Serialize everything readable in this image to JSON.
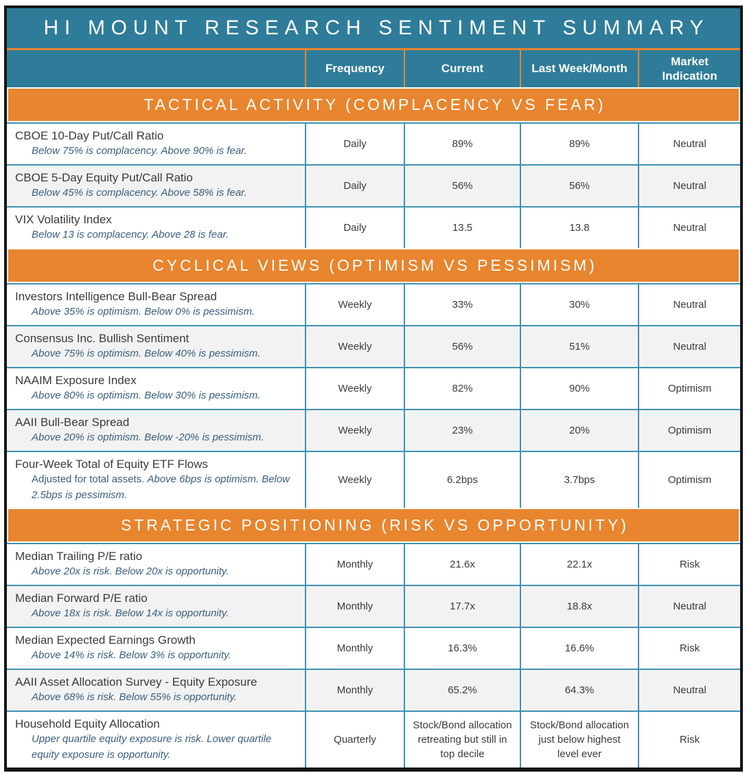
{
  "title": "HI MOUNT RESEARCH SENTIMENT SUMMARY",
  "columns": [
    "Frequency",
    "Current",
    "Last Week/Month",
    "Market Indication"
  ],
  "colors": {
    "teal_header": "#2E7C99",
    "orange_band": "#E8852E",
    "row_border_teal": "#3E92B0",
    "row_alt_gray": "#F2F2F2",
    "note_blue": "#3A6080",
    "text_dark": "#3B3B3B",
    "frame_black": "#151515",
    "title_text": "#FFFFFF"
  },
  "sections": [
    {
      "heading": "TACTICAL ACTIVITY (COMPLACENCY VS FEAR)",
      "rows": [
        {
          "title": "CBOE 10-Day Put/Call Ratio",
          "note_plain": "",
          "note_italic": "Below 75% is complacency. Above 90% is fear.",
          "frequency": "Daily",
          "current": "89%",
          "last": "89%",
          "indication": "Neutral"
        },
        {
          "title": "CBOE 5-Day Equity Put/Call Ratio",
          "note_plain": "",
          "note_italic": "Below 45% is complacency. Above 58% is fear.",
          "frequency": "Daily",
          "current": "56%",
          "last": "56%",
          "indication": "Neutral"
        },
        {
          "title": "VIX Volatility Index",
          "note_plain": "",
          "note_italic": "Below 13 is complacency. Above 28 is fear.",
          "frequency": "Daily",
          "current": "13.5",
          "last": "13.8",
          "indication": "Neutral"
        }
      ]
    },
    {
      "heading": "CYCLICAL VIEWS (OPTIMISM VS PESSIMISM)",
      "rows": [
        {
          "title": "Investors Intelligence Bull-Bear Spread",
          "note_plain": "",
          "note_italic": "Above 35% is optimism. Below 0% is pessimism.",
          "frequency": "Weekly",
          "current": "33%",
          "last": "30%",
          "indication": "Neutral"
        },
        {
          "title": "Consensus Inc. Bullish Sentiment",
          "note_plain": "",
          "note_italic": "Above 75% is optimism. Below 40% is pessimism.",
          "frequency": "Weekly",
          "current": "56%",
          "last": "51%",
          "indication": "Neutral"
        },
        {
          "title": "NAAIM Exposure Index",
          "note_plain": "",
          "note_italic": "Above 80% is optimism. Below 30% is pessimism.",
          "frequency": "Weekly",
          "current": "82%",
          "last": "90%",
          "indication": "Optimism"
        },
        {
          "title": "AAII Bull-Bear Spread",
          "note_plain": "",
          "note_italic": "Above 20% is optimism. Below -20% is pessimism.",
          "frequency": "Weekly",
          "current": "23%",
          "last": "20%",
          "indication": "Optimism"
        },
        {
          "title": "Four-Week Total of Equity ETF Flows",
          "note_plain": "Adjusted for total assets. ",
          "note_italic": "Above 6bps is optimism. Below 2.5bps is pessimism.",
          "frequency": "Weekly",
          "current": "6.2bps",
          "last": "3.7bps",
          "indication": "Optimism"
        }
      ]
    },
    {
      "heading": "STRATEGIC POSITIONING (RISK VS OPPORTUNITY)",
      "rows": [
        {
          "title": "Median Trailing P/E ratio",
          "note_plain": "",
          "note_italic": "Above 20x is risk. Below 20x is opportunity.",
          "frequency": "Monthly",
          "current": "21.6x",
          "last": "22.1x",
          "indication": "Risk"
        },
        {
          "title": "Median Forward P/E ratio",
          "note_plain": "",
          "note_italic": "Above 18x is risk. Below 14x is opportunity.",
          "frequency": "Monthly",
          "current": "17.7x",
          "last": "18.8x",
          "indication": "Neutral"
        },
        {
          "title": "Median Expected Earnings Growth",
          "note_plain": "",
          "note_italic": "Above 14% is risk. Below 3% is opportunity.",
          "frequency": "Monthly",
          "current": "16.3%",
          "last": "16.6%",
          "indication": "Risk"
        },
        {
          "title": "AAII Asset Allocation Survey - Equity Exposure",
          "note_plain": "",
          "note_italic": "Above 68% is risk. Below 55% is opportunity.",
          "frequency": "Monthly",
          "current": "65.2%",
          "last": "64.3%",
          "indication": "Neutral"
        },
        {
          "title": "Household Equity Allocation",
          "note_plain": "",
          "note_italic": "Upper quartile equity exposure is risk. Lower quartile equity exposure is opportunity.",
          "frequency": "Quarterly",
          "current": "Stock/Bond allocation retreating but still in top decile",
          "last": "Stock/Bond allocation just below highest level ever",
          "indication": "Risk"
        }
      ]
    }
  ]
}
